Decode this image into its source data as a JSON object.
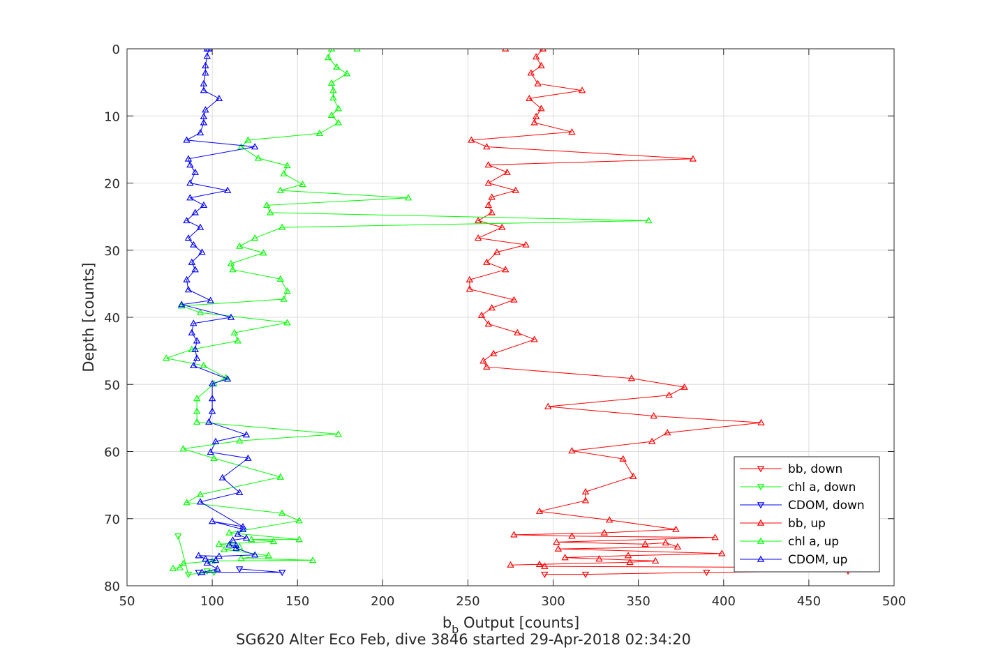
{
  "chart_data": {
    "type": "line",
    "title": "",
    "xlabel_main": "b",
    "xlabel_sub": "b",
    "xlabel_rest": " Output [counts]",
    "ylabel": "Depth [counts]",
    "caption": "SG620 Alter Eco Feb, dive 3846 started 29-Apr-2018 02:34:20",
    "xlim": [
      50,
      500
    ],
    "ylim": [
      0,
      80
    ],
    "y_reversed": true,
    "grid": true,
    "legend_position": "bottom-right",
    "xticks": [
      50,
      100,
      150,
      200,
      250,
      300,
      350,
      400,
      450,
      500
    ],
    "yticks": [
      0,
      10,
      20,
      30,
      40,
      50,
      60,
      70,
      80
    ],
    "series": [
      {
        "name": "bb, down",
        "color": "#ff0000",
        "marker": "triangle-down",
        "points": [
          [
            295,
            78.3
          ],
          [
            319,
            78.3
          ],
          [
            390,
            78.0
          ],
          [
            473,
            77.8
          ]
        ]
      },
      {
        "name": "chl a, down",
        "color": "#00ff00",
        "marker": "triangle-down",
        "points": [
          [
            97,
            77.8
          ],
          [
            101,
            78.0
          ],
          [
            86,
            78.3
          ],
          [
            80,
            72.6
          ]
        ]
      },
      {
        "name": "CDOM, down",
        "color": "#0000ff",
        "marker": "triangle-down",
        "points": [
          [
            92,
            78.0
          ],
          [
            141,
            78.0
          ],
          [
            116,
            77.5
          ]
        ]
      },
      {
        "name": "bb, up",
        "color": "#ff0000",
        "marker": "triangle-up",
        "points": [
          [
            272,
            0
          ],
          [
            294,
            0
          ],
          [
            290,
            1.2
          ],
          [
            293,
            2.5
          ],
          [
            287,
            3.6
          ],
          [
            291,
            5.2
          ],
          [
            317,
            6.2
          ],
          [
            286,
            7.4
          ],
          [
            293,
            8.9
          ],
          [
            290,
            10.1
          ],
          [
            289,
            11.0
          ],
          [
            311,
            12.4
          ],
          [
            252,
            13.6
          ],
          [
            261,
            14.6
          ],
          [
            382,
            16.4
          ],
          [
            262,
            17.3
          ],
          [
            273,
            18.4
          ],
          [
            262,
            20.0
          ],
          [
            278,
            21.1
          ],
          [
            264,
            22.1
          ],
          [
            262,
            23.3
          ],
          [
            264,
            24.4
          ],
          [
            256,
            25.6
          ],
          [
            270,
            26.6
          ],
          [
            256,
            28.2
          ],
          [
            284,
            29.2
          ],
          [
            267,
            30.3
          ],
          [
            261,
            31.8
          ],
          [
            272,
            32.9
          ],
          [
            251,
            34.4
          ],
          [
            251,
            35.8
          ],
          [
            277,
            37.4
          ],
          [
            264,
            38.6
          ],
          [
            258,
            39.7
          ],
          [
            262,
            41.0
          ],
          [
            279,
            42.3
          ],
          [
            289,
            43.3
          ],
          [
            265,
            45.4
          ],
          [
            259,
            46.5
          ],
          [
            261,
            47.4
          ],
          [
            346,
            49.1
          ],
          [
            377,
            50.4
          ],
          [
            368,
            51.6
          ],
          [
            297,
            53.3
          ],
          [
            359,
            54.7
          ],
          [
            422,
            55.7
          ],
          [
            367,
            57.2
          ],
          [
            358,
            58.5
          ],
          [
            311,
            59.9
          ],
          [
            341,
            61.1
          ],
          [
            347,
            63.7
          ],
          [
            319,
            66.0
          ],
          [
            319,
            67.3
          ],
          [
            292,
            68.9
          ],
          [
            333,
            70.2
          ],
          [
            372,
            71.6
          ],
          [
            330,
            72.1
          ],
          [
            277,
            72.4
          ],
          [
            311,
            72.6
          ],
          [
            395,
            72.8
          ],
          [
            302,
            73.5
          ],
          [
            354,
            73.8
          ],
          [
            366,
            73.6
          ],
          [
            373,
            74.2
          ],
          [
            303,
            74.5
          ],
          [
            399,
            75.2
          ],
          [
            344,
            75.5
          ],
          [
            307,
            75.8
          ],
          [
            327,
            76.0
          ],
          [
            360,
            76.3
          ],
          [
            345,
            76.5
          ],
          [
            275,
            76.9
          ],
          [
            292,
            76.8
          ],
          [
            295,
            77.1
          ],
          [
            473,
            77.3
          ]
        ]
      },
      {
        "name": "chl a, up",
        "color": "#00ff00",
        "marker": "triangle-up",
        "points": [
          [
            185,
            0
          ],
          [
            170,
            0
          ],
          [
            168,
            1.3
          ],
          [
            173,
            2.7
          ],
          [
            179,
            3.7
          ],
          [
            170,
            5.1
          ],
          [
            171,
            6.2
          ],
          [
            171,
            7.3
          ],
          [
            174,
            8.9
          ],
          [
            170,
            9.9
          ],
          [
            174,
            11.0
          ],
          [
            163,
            12.6
          ],
          [
            121,
            13.6
          ],
          [
            117,
            14.6
          ],
          [
            127,
            16.3
          ],
          [
            144,
            17.4
          ],
          [
            142,
            18.6
          ],
          [
            153,
            20.2
          ],
          [
            140,
            21.1
          ],
          [
            215,
            22.2
          ],
          [
            132,
            23.3
          ],
          [
            134,
            24.4
          ],
          [
            356,
            25.6
          ],
          [
            141,
            26.6
          ],
          [
            125,
            28.2
          ],
          [
            116,
            29.4
          ],
          [
            130,
            30.4
          ],
          [
            111,
            32.0
          ],
          [
            112,
            32.9
          ],
          [
            140,
            34.3
          ],
          [
            144,
            36.1
          ],
          [
            142,
            37.3
          ],
          [
            82,
            38.3
          ],
          [
            93,
            39.3
          ],
          [
            144,
            40.8
          ],
          [
            113,
            42.3
          ],
          [
            115,
            43.5
          ],
          [
            88,
            44.8
          ],
          [
            73,
            46.1
          ],
          [
            95,
            47.2
          ],
          [
            108,
            49.0
          ],
          [
            101,
            49.9
          ],
          [
            91,
            52.1
          ],
          [
            91,
            54.0
          ],
          [
            91,
            55.6
          ],
          [
            174,
            57.4
          ],
          [
            116,
            58.4
          ],
          [
            83,
            59.6
          ],
          [
            101,
            61.0
          ],
          [
            140,
            63.8
          ],
          [
            93,
            66.4
          ],
          [
            85,
            67.6
          ],
          [
            141,
            69.2
          ],
          [
            151,
            70.3
          ],
          [
            110,
            72.1
          ],
          [
            151,
            73.1
          ],
          [
            123,
            73.1
          ],
          [
            136,
            73.4
          ],
          [
            104,
            73.8
          ],
          [
            116,
            74.2
          ],
          [
            107,
            74.6
          ],
          [
            133,
            75.5
          ],
          [
            117,
            75.9
          ],
          [
            159,
            76.2
          ],
          [
            100,
            76.3
          ],
          [
            83,
            76.7
          ],
          [
            81,
            77.3
          ],
          [
            77,
            77.4
          ]
        ]
      },
      {
        "name": "CDOM, up",
        "color": "#0000ff",
        "marker": "triangle-up",
        "points": [
          [
            97,
            0
          ],
          [
            98,
            0
          ],
          [
            97,
            1.1
          ],
          [
            96,
            2.5
          ],
          [
            96,
            3.6
          ],
          [
            95,
            5.2
          ],
          [
            95,
            6.2
          ],
          [
            104,
            7.4
          ],
          [
            96,
            9.1
          ],
          [
            95,
            10.1
          ],
          [
            95,
            11.0
          ],
          [
            93,
            12.5
          ],
          [
            85,
            13.6
          ],
          [
            125,
            14.6
          ],
          [
            86,
            16.4
          ],
          [
            87,
            17.3
          ],
          [
            90,
            18.4
          ],
          [
            87,
            20.0
          ],
          [
            109,
            21.1
          ],
          [
            87,
            22.2
          ],
          [
            95,
            23.3
          ],
          [
            90,
            24.4
          ],
          [
            85,
            25.6
          ],
          [
            93,
            26.6
          ],
          [
            86,
            28.2
          ],
          [
            89,
            29.2
          ],
          [
            94,
            30.3
          ],
          [
            88,
            31.8
          ],
          [
            90,
            32.9
          ],
          [
            85,
            34.4
          ],
          [
            86,
            35.9
          ],
          [
            99,
            37.5
          ],
          [
            82,
            38.1
          ],
          [
            111,
            40.0
          ],
          [
            89,
            40.9
          ],
          [
            88,
            42.3
          ],
          [
            91,
            43.5
          ],
          [
            90,
            44.8
          ],
          [
            91,
            46.1
          ],
          [
            89,
            47.2
          ],
          [
            109,
            49.2
          ],
          [
            100,
            49.9
          ],
          [
            100,
            52.1
          ],
          [
            100,
            54.0
          ],
          [
            98,
            55.6
          ],
          [
            120,
            57.5
          ],
          [
            102,
            58.5
          ],
          [
            99,
            60.1
          ],
          [
            121,
            61.0
          ],
          [
            106,
            63.9
          ],
          [
            116,
            66.1
          ],
          [
            93,
            67.5
          ],
          [
            118,
            71.2
          ],
          [
            100,
            70.4
          ],
          [
            118,
            71.6
          ],
          [
            115,
            72.3
          ],
          [
            120,
            72.9
          ],
          [
            112,
            73.2
          ],
          [
            110,
            73.9
          ],
          [
            114,
            74.0
          ],
          [
            114,
            74.4
          ],
          [
            125,
            75.4
          ],
          [
            104,
            75.6
          ],
          [
            92,
            75.5
          ],
          [
            96,
            76.0
          ],
          [
            102,
            76.2
          ],
          [
            97,
            76.6
          ],
          [
            103,
            77.5
          ],
          [
            94,
            78.0
          ]
        ]
      }
    ]
  }
}
